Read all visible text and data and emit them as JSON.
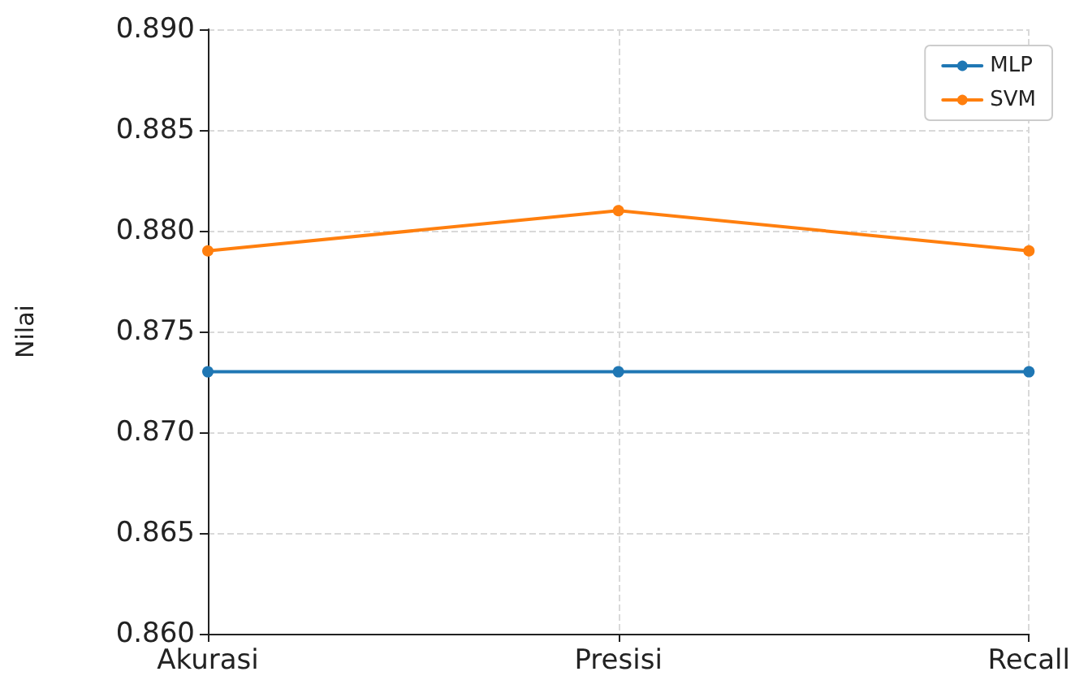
{
  "chart_data": {
    "type": "line",
    "ylabel": "Nilai",
    "categories": [
      "Akurasi",
      "Presisi",
      "Recall"
    ],
    "series": [
      {
        "name": "MLP",
        "color": "#1f77b4",
        "values": [
          0.873,
          0.873,
          0.873
        ]
      },
      {
        "name": "SVM",
        "color": "#ff7f0e",
        "values": [
          0.879,
          0.881,
          0.879
        ]
      }
    ],
    "ylim": [
      0.86,
      0.89
    ],
    "yticks": [
      {
        "value": 0.86,
        "label": "0.860"
      },
      {
        "value": 0.865,
        "label": "0.865"
      },
      {
        "value": 0.87,
        "label": "0.870"
      },
      {
        "value": 0.875,
        "label": "0.875"
      },
      {
        "value": 0.88,
        "label": "0.880"
      },
      {
        "value": 0.885,
        "label": "0.885"
      },
      {
        "value": 0.89,
        "label": "0.890"
      }
    ],
    "grid": true,
    "legend": "top right",
    "marker": "circle",
    "line_style": "solid"
  }
}
